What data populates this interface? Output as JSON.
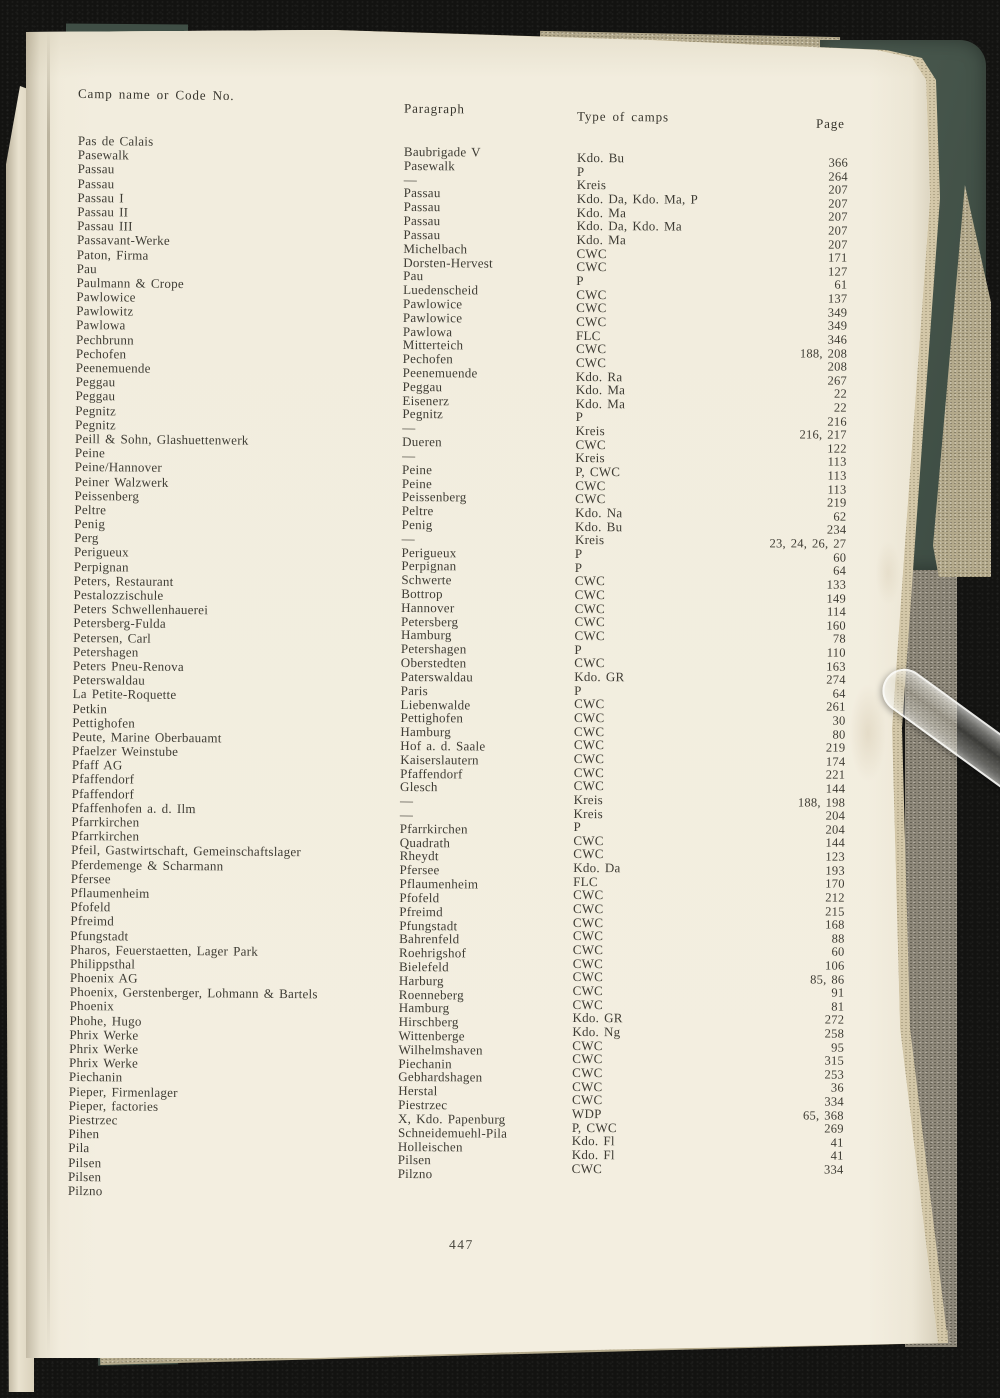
{
  "headers": {
    "camp": "Camp name or Code No.",
    "paragraph": "Paragraph",
    "type": "Type of camps",
    "page": "Page"
  },
  "page_number": "447",
  "colors": {
    "paper": "#f2edde",
    "ink": "#3e3c34",
    "cover_green": "#45544a",
    "background_black": "#131311",
    "edge_tan": "#d3c7a8"
  },
  "table": {
    "rows": [
      {
        "camp": "Pas de Calais",
        "paragraph": "Baubrigade V",
        "type": "Kdo. Bu",
        "page": "366"
      },
      {
        "camp": "Pasewalk",
        "paragraph": "Pasewalk",
        "type": "P",
        "page": "264"
      },
      {
        "camp": "Passau",
        "paragraph": "—",
        "type": "Kreis",
        "page": "207"
      },
      {
        "camp": "Passau",
        "paragraph": "Passau",
        "type": "Kdo. Da, Kdo. Ma, P",
        "page": "207"
      },
      {
        "camp": "Passau I",
        "paragraph": "Passau",
        "type": "Kdo. Ma",
        "page": "207"
      },
      {
        "camp": "Passau II",
        "paragraph": "Passau",
        "type": "Kdo. Da, Kdo. Ma",
        "page": "207"
      },
      {
        "camp": "Passau III",
        "paragraph": "Passau",
        "type": "Kdo. Ma",
        "page": "207"
      },
      {
        "camp": "Passavant-Werke",
        "paragraph": "Michelbach",
        "type": "CWC",
        "page": "171"
      },
      {
        "camp": "Paton, Firma",
        "paragraph": "Dorsten-Hervest",
        "type": "CWC",
        "page": "127"
      },
      {
        "camp": "Pau",
        "paragraph": "Pau",
        "type": "P",
        "page": "61"
      },
      {
        "camp": "Paulmann & Crope",
        "paragraph": "Luedenscheid",
        "type": "CWC",
        "page": "137"
      },
      {
        "camp": "Pawlowice",
        "paragraph": "Pawlowice",
        "type": "CWC",
        "page": "349"
      },
      {
        "camp": "Pawlowitz",
        "paragraph": "Pawlowice",
        "type": "CWC",
        "page": "349"
      },
      {
        "camp": "Pawlowa",
        "paragraph": "Pawlowa",
        "type": "FLC",
        "page": "346"
      },
      {
        "camp": "Pechbrunn",
        "paragraph": "Mitterteich",
        "type": "CWC",
        "page": "188, 208"
      },
      {
        "camp": "Pechofen",
        "paragraph": "Pechofen",
        "type": "CWC",
        "page": "208"
      },
      {
        "camp": "Peenemuende",
        "paragraph": "Peenemuende",
        "type": "Kdo. Ra",
        "page": "267"
      },
      {
        "camp": "Peggau",
        "paragraph": "Peggau",
        "type": "Kdo. Ma",
        "page": "22"
      },
      {
        "camp": "Peggau",
        "paragraph": "Eisenerz",
        "type": "Kdo. Ma",
        "page": "22"
      },
      {
        "camp": "Pegnitz",
        "paragraph": "Pegnitz",
        "type": "P",
        "page": "216"
      },
      {
        "camp": "Pegnitz",
        "paragraph": "—",
        "type": "Kreis",
        "page": "216, 217"
      },
      {
        "camp": "Peill & Sohn, Glashuettenwerk",
        "paragraph": "Dueren",
        "type": "CWC",
        "page": "122"
      },
      {
        "camp": "Peine",
        "paragraph": "—",
        "type": "Kreis",
        "page": "113"
      },
      {
        "camp": "Peine/Hannover",
        "paragraph": "Peine",
        "type": "P, CWC",
        "page": "113"
      },
      {
        "camp": "Peiner Walzwerk",
        "paragraph": "Peine",
        "type": "CWC",
        "page": "113"
      },
      {
        "camp": "Peissenberg",
        "paragraph": "Peissenberg",
        "type": "CWC",
        "page": "219"
      },
      {
        "camp": "Peltre",
        "paragraph": "Peltre",
        "type": "Kdo. Na",
        "page": "62"
      },
      {
        "camp": "Penig",
        "paragraph": "Penig",
        "type": "Kdo. Bu",
        "page": "234"
      },
      {
        "camp": "Perg",
        "paragraph": "—",
        "type": "Kreis",
        "page": "23, 24, 26, 27"
      },
      {
        "camp": "Perigueux",
        "paragraph": "Perigueux",
        "type": "P",
        "page": "60"
      },
      {
        "camp": "Perpignan",
        "paragraph": "Perpignan",
        "type": "P",
        "page": "64"
      },
      {
        "camp": "Peters, Restaurant",
        "paragraph": "Schwerte",
        "type": "CWC",
        "page": "133"
      },
      {
        "camp": "Pestalozzischule",
        "paragraph": "Bottrop",
        "type": "CWC",
        "page": "149"
      },
      {
        "camp": "Peters Schwellenhauerei",
        "paragraph": "Hannover",
        "type": "CWC",
        "page": "114"
      },
      {
        "camp": "Petersberg-Fulda",
        "paragraph": "Petersberg",
        "type": "CWC",
        "page": "160"
      },
      {
        "camp": "Petersen, Carl",
        "paragraph": "Hamburg",
        "type": "CWC",
        "page": "78"
      },
      {
        "camp": "Petershagen",
        "paragraph": "Petershagen",
        "type": "P",
        "page": "110"
      },
      {
        "camp": "Peters Pneu-Renova",
        "paragraph": "Oberstedten",
        "type": "CWC",
        "page": "163"
      },
      {
        "camp": "Peterswaldau",
        "paragraph": "Paterswaldau",
        "type": "Kdo. GR",
        "page": "274"
      },
      {
        "camp": "La Petite-Roquette",
        "paragraph": "Paris",
        "type": "P",
        "page": "64"
      },
      {
        "camp": "Petkin",
        "paragraph": "Liebenwalde",
        "type": "CWC",
        "page": "261"
      },
      {
        "camp": "Pettighofen",
        "paragraph": "Pettighofen",
        "type": "CWC",
        "page": "30"
      },
      {
        "camp": "Peute, Marine Oberbauamt",
        "paragraph": "Hamburg",
        "type": "CWC",
        "page": "80"
      },
      {
        "camp": "Pfaelzer Weinstube",
        "paragraph": "Hof a. d. Saale",
        "type": "CWC",
        "page": "219"
      },
      {
        "camp": "Pfaff AG",
        "paragraph": "Kaiserslautern",
        "type": "CWC",
        "page": "174"
      },
      {
        "camp": "Pfaffendorf",
        "paragraph": "Pfaffendorf",
        "type": "CWC",
        "page": "221"
      },
      {
        "camp": "Pfaffendorf",
        "paragraph": "Glesch",
        "type": "CWC",
        "page": "144"
      },
      {
        "camp": "Pfaffenhofen a. d. Ilm",
        "paragraph": "—",
        "type": "Kreis",
        "page": "188, 198"
      },
      {
        "camp": "Pfarrkirchen",
        "paragraph": "—",
        "type": "Kreis",
        "page": "204"
      },
      {
        "camp": "Pfarrkirchen",
        "paragraph": "Pfarrkirchen",
        "type": "P",
        "page": "204"
      },
      {
        "camp": "Pfeil, Gastwirtschaft, Gemeinschaftslager",
        "paragraph": "Quadrath",
        "type": "CWC",
        "page": "144"
      },
      {
        "camp": "Pferdemenge & Scharmann",
        "paragraph": "Rheydt",
        "type": "CWC",
        "page": "123"
      },
      {
        "camp": "Pfersee",
        "paragraph": "Pfersee",
        "type": "Kdo. Da",
        "page": "193"
      },
      {
        "camp": "Pflaumenheim",
        "paragraph": "Pflaumenheim",
        "type": "FLC",
        "page": "170"
      },
      {
        "camp": "Pfofeld",
        "paragraph": "Pfofeld",
        "type": "CWC",
        "page": "212"
      },
      {
        "camp": "Pfreimd",
        "paragraph": "Pfreimd",
        "type": "CWC",
        "page": "215"
      },
      {
        "camp": "Pfungstadt",
        "paragraph": "Pfungstadt",
        "type": "CWC",
        "page": "168"
      },
      {
        "camp": "Pharos, Feuerstaetten, Lager Park",
        "paragraph": "Bahrenfeld",
        "type": "CWC",
        "page": "88"
      },
      {
        "camp": "Philippsthal",
        "paragraph": "Roehrigshof",
        "type": "CWC",
        "page": "60"
      },
      {
        "camp": "Phoenix AG",
        "paragraph": "Bielefeld",
        "type": "CWC",
        "page": "106"
      },
      {
        "camp": "Phoenix, Gerstenberger, Lohmann & Bartels",
        "paragraph": "Harburg",
        "type": "CWC",
        "page": "85, 86"
      },
      {
        "camp": "Phoenix",
        "paragraph": "Roenneberg",
        "type": "CWC",
        "page": "91"
      },
      {
        "camp": "Phohe, Hugo",
        "paragraph": "Hamburg",
        "type": "CWC",
        "page": "81"
      },
      {
        "camp": "Phrix Werke",
        "paragraph": "Hirschberg",
        "type": "Kdo. GR",
        "page": "272"
      },
      {
        "camp": "Phrix Werke",
        "paragraph": "Wittenberge",
        "type": "Kdo. Ng",
        "page": "258"
      },
      {
        "camp": "Phrix Werke",
        "paragraph": "Wilhelmshaven",
        "type": "CWC",
        "page": "95"
      },
      {
        "camp": "Piechanin",
        "paragraph": "Piechanin",
        "type": "CWC",
        "page": "315"
      },
      {
        "camp": "Pieper, Firmenlager",
        "paragraph": "Gebhardshagen",
        "type": "CWC",
        "page": "253"
      },
      {
        "camp": "Pieper, factories",
        "paragraph": "Herstal",
        "type": "CWC",
        "page": "36"
      },
      {
        "camp": "Piestrzec",
        "paragraph": "Piestrzec",
        "type": "CWC",
        "page": "334"
      },
      {
        "camp": "Pihen",
        "paragraph": "X, Kdo. Papenburg",
        "type": "WDP",
        "page": "65, 368"
      },
      {
        "camp": "Pila",
        "paragraph": "Schneidemuehl-Pila",
        "type": "P, CWC",
        "page": "269"
      },
      {
        "camp": "Pilsen",
        "paragraph": "Holleischen",
        "type": "Kdo. Fl",
        "page": "41"
      },
      {
        "camp": "Pilsen",
        "paragraph": "Pilsen",
        "type": "Kdo. Fl",
        "page": "41"
      },
      {
        "camp": "Pilzno",
        "paragraph": "Pilzno",
        "type": "CWC",
        "page": "334"
      }
    ]
  }
}
